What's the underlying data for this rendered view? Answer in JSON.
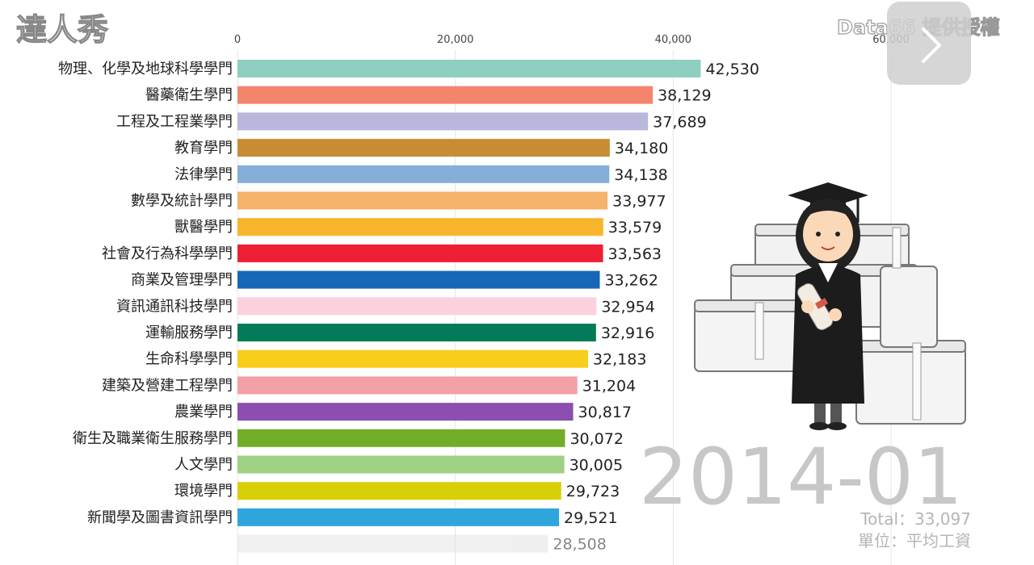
{
  "chart_data": {
    "type": "bar",
    "orientation": "horizontal",
    "categories": [
      "物理、化學及地球科學學門",
      "醫藥衛生學門",
      "工程及工程業學門",
      "教育學門",
      "法律學門",
      "數學及統計學門",
      "獸醫學門",
      "社會及行為科學學門",
      "商業及管理學門",
      "資訊通訊科技學門",
      "運輸服務學門",
      "生命科學學門",
      "建築及營建工程學門",
      "農業學門",
      "衛生及職業衛生服務學門",
      "人文學門",
      "環境學門",
      "新聞學及圖書資訊學門",
      ""
    ],
    "values": [
      42530,
      38129,
      37689,
      34180,
      34138,
      33977,
      33579,
      33563,
      33262,
      32954,
      32916,
      32183,
      31204,
      30817,
      30072,
      30005,
      29723,
      29521,
      28508
    ],
    "value_labels": [
      "42,530",
      "38,129",
      "37,689",
      "34,180",
      "34,138",
      "33,977",
      "33,579",
      "33,563",
      "33,262",
      "32,954",
      "32,916",
      "32,183",
      "31,204",
      "30,817",
      "30,072",
      "30,005",
      "29,723",
      "29,521",
      "28,508"
    ],
    "colors": [
      "#8fcfc2",
      "#f4856d",
      "#b9b7dc",
      "#c88c35",
      "#84afd8",
      "#f4b36b",
      "#f7b52c",
      "#ee1f35",
      "#1766b7",
      "#fad2dd",
      "#037a58",
      "#f8cd1c",
      "#f2a0a6",
      "#8c4eb1",
      "#72ad28",
      "#9fd184",
      "#d9cf09",
      "#2ea6dc",
      "#e2e3e5"
    ],
    "xaxis_ticks": [
      "0",
      "20,000",
      "40,000",
      "60,000"
    ],
    "xaxis_tick_values": [
      0,
      20000,
      40000,
      60000
    ],
    "xlim": [
      0,
      60000
    ],
    "grid": true,
    "axis_position": "top",
    "period": "2014-01",
    "total": "Total：33,097",
    "unit": "單位：平均工資"
  },
  "branding": {
    "logo": "達人秀",
    "credit": "Data66 提供授權"
  },
  "icons": {
    "next": "chevron-right-icon"
  }
}
